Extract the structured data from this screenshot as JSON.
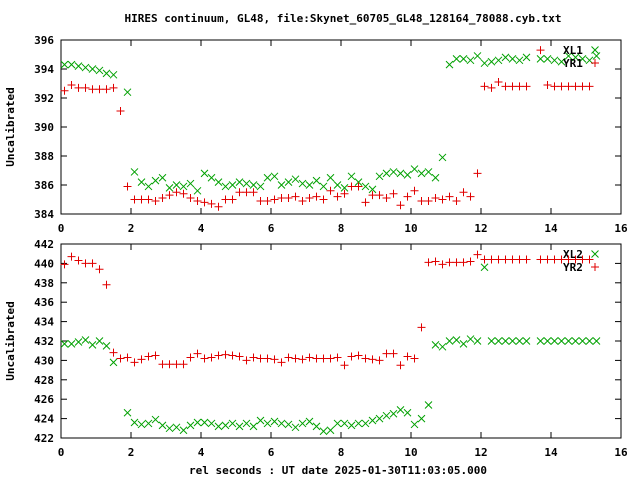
{
  "chart_data": [
    {
      "type": "scatter",
      "title": "HIRES continuum, GL48, file:Skynet_60705_GL48_128164_78088.cyb.txt",
      "xlabel": "",
      "ylabel": "Uncalibrated",
      "xlim": [
        0,
        16
      ],
      "ylim": [
        384,
        396
      ],
      "xticks": [
        0,
        2,
        4,
        6,
        8,
        10,
        12,
        14,
        16
      ],
      "yticks": [
        384,
        386,
        388,
        390,
        392,
        394,
        396
      ],
      "grid": false,
      "legend_position": "top-right",
      "series": [
        {
          "name": "XL1",
          "marker": "x",
          "color": "#00a000",
          "x": [
            0.1,
            0.3,
            0.5,
            0.7,
            0.9,
            1.1,
            1.3,
            1.5,
            1.9,
            2.1,
            2.3,
            2.5,
            2.7,
            2.9,
            3.1,
            3.3,
            3.5,
            3.7,
            3.9,
            4.1,
            4.3,
            4.5,
            4.7,
            4.9,
            5.1,
            5.3,
            5.5,
            5.7,
            5.9,
            6.1,
            6.3,
            6.5,
            6.7,
            6.9,
            7.1,
            7.3,
            7.5,
            7.7,
            7.9,
            8.1,
            8.3,
            8.5,
            8.7,
            8.9,
            9.1,
            9.3,
            9.5,
            9.7,
            9.9,
            10.1,
            10.3,
            10.5,
            10.7,
            10.9,
            11.1,
            11.3,
            11.5,
            11.7,
            11.9,
            12.1,
            12.3,
            12.5,
            12.7,
            12.9,
            13.1,
            13.3,
            13.7,
            13.9,
            14.1,
            14.3,
            14.5,
            14.7,
            14.9,
            15.1,
            15.3
          ],
          "y": [
            394.3,
            394.3,
            394.2,
            394.1,
            394.0,
            393.9,
            393.7,
            393.6,
            392.4,
            386.9,
            386.2,
            385.9,
            386.3,
            386.5,
            385.8,
            386.0,
            385.9,
            386.1,
            385.6,
            386.8,
            386.5,
            386.2,
            385.9,
            386.0,
            386.2,
            386.1,
            386.0,
            385.9,
            386.5,
            386.6,
            386.0,
            386.2,
            386.4,
            386.1,
            386.0,
            386.3,
            385.9,
            386.5,
            386.0,
            385.8,
            386.6,
            386.2,
            385.9,
            385.7,
            386.6,
            386.8,
            386.9,
            386.8,
            386.7,
            387.1,
            386.8,
            386.9,
            386.5,
            387.9,
            394.3,
            394.7,
            394.7,
            394.6,
            394.9,
            394.4,
            394.5,
            394.6,
            394.8,
            394.7,
            394.6,
            394.8,
            394.7,
            394.7,
            394.6,
            394.5,
            394.9,
            394.8,
            394.7,
            394.6,
            394.9
          ]
        },
        {
          "name": "YR1",
          "marker": "+",
          "color": "#e00000",
          "x": [
            0.1,
            0.3,
            0.5,
            0.7,
            0.9,
            1.1,
            1.3,
            1.5,
            1.7,
            1.9,
            2.1,
            2.3,
            2.5,
            2.7,
            2.9,
            3.1,
            3.3,
            3.5,
            3.7,
            3.9,
            4.1,
            4.3,
            4.5,
            4.7,
            4.9,
            5.1,
            5.3,
            5.5,
            5.7,
            5.9,
            6.1,
            6.3,
            6.5,
            6.7,
            6.9,
            7.1,
            7.3,
            7.5,
            7.7,
            7.9,
            8.1,
            8.3,
            8.5,
            8.7,
            8.9,
            9.1,
            9.3,
            9.5,
            9.7,
            9.9,
            10.1,
            10.3,
            10.5,
            10.7,
            10.9,
            11.1,
            11.3,
            11.5,
            11.7,
            11.9,
            12.1,
            12.3,
            12.5,
            12.7,
            12.9,
            13.1,
            13.3,
            13.7,
            13.9,
            14.1,
            14.3,
            14.5,
            14.7,
            14.9,
            15.1
          ],
          "y": [
            392.5,
            392.9,
            392.7,
            392.7,
            392.6,
            392.6,
            392.6,
            392.7,
            391.1,
            385.9,
            385.0,
            385.0,
            385.0,
            384.9,
            385.1,
            385.3,
            385.5,
            385.4,
            385.1,
            384.9,
            384.8,
            384.7,
            384.5,
            385.0,
            385.0,
            385.5,
            385.5,
            385.5,
            384.9,
            384.9,
            385.0,
            385.1,
            385.1,
            385.2,
            384.9,
            385.1,
            385.2,
            385.0,
            385.6,
            385.2,
            385.4,
            385.9,
            385.9,
            384.8,
            385.3,
            385.3,
            385.1,
            385.4,
            384.6,
            385.2,
            385.6,
            384.9,
            384.9,
            385.1,
            385.0,
            385.2,
            384.9,
            385.5,
            385.2,
            386.8,
            392.8,
            392.7,
            393.1,
            392.8,
            392.8,
            392.8,
            392.8,
            395.3,
            392.9,
            392.8,
            392.8,
            392.8,
            392.8,
            392.8,
            392.8
          ]
        }
      ]
    },
    {
      "type": "scatter",
      "title": "",
      "xlabel": "rel seconds : UT date 2025-01-30T11:03:05.000",
      "ylabel": "Uncalibrated",
      "xlim": [
        0,
        16
      ],
      "ylim": [
        422,
        442
      ],
      "xticks": [
        0,
        2,
        4,
        6,
        8,
        10,
        12,
        14,
        16
      ],
      "yticks": [
        422,
        424,
        426,
        428,
        430,
        432,
        434,
        436,
        438,
        440,
        442
      ],
      "grid": false,
      "legend_position": "top-right",
      "series": [
        {
          "name": "XL2",
          "marker": "x",
          "color": "#00a000",
          "x": [
            0.1,
            0.3,
            0.5,
            0.7,
            0.9,
            1.1,
            1.3,
            1.5,
            1.9,
            2.1,
            2.3,
            2.5,
            2.7,
            2.9,
            3.1,
            3.3,
            3.5,
            3.7,
            3.9,
            4.1,
            4.3,
            4.5,
            4.7,
            4.9,
            5.1,
            5.3,
            5.5,
            5.7,
            5.9,
            6.1,
            6.3,
            6.5,
            6.7,
            6.9,
            7.1,
            7.3,
            7.5,
            7.7,
            7.9,
            8.1,
            8.3,
            8.5,
            8.7,
            8.9,
            9.1,
            9.3,
            9.5,
            9.7,
            9.9,
            10.1,
            10.3,
            10.5,
            10.7,
            10.9,
            11.1,
            11.3,
            11.5,
            11.7,
            11.9,
            12.1,
            12.3,
            12.5,
            12.7,
            12.9,
            13.1,
            13.3,
            13.7,
            13.9,
            14.1,
            14.3,
            14.5,
            14.7,
            14.9,
            15.1,
            15.3
          ],
          "y": [
            431.7,
            431.7,
            431.9,
            432.1,
            431.6,
            432.0,
            431.5,
            429.8,
            424.6,
            423.6,
            423.4,
            423.5,
            423.9,
            423.3,
            423.0,
            423.1,
            422.8,
            423.3,
            423.6,
            423.6,
            423.5,
            423.2,
            423.3,
            423.5,
            423.2,
            423.5,
            423.2,
            423.8,
            423.5,
            423.7,
            423.5,
            423.4,
            423.1,
            423.5,
            423.7,
            423.2,
            422.7,
            422.8,
            423.5,
            423.5,
            423.3,
            423.5,
            423.5,
            423.8,
            424.0,
            424.3,
            424.5,
            424.9,
            424.6,
            423.4,
            424.0,
            425.4,
            431.6,
            431.4,
            432.0,
            432.1,
            431.7,
            432.2,
            432.0,
            439.6,
            432.0,
            432.0,
            432.0,
            432.0,
            432.0,
            432.0,
            432.0,
            432.0,
            432.0,
            432.0,
            432.0,
            432.0,
            432.0,
            432.0,
            432.0
          ]
        },
        {
          "name": "YR2",
          "marker": "+",
          "color": "#e00000",
          "x": [
            0.1,
            0.3,
            0.5,
            0.7,
            0.9,
            1.1,
            1.3,
            1.5,
            1.7,
            1.9,
            2.1,
            2.3,
            2.5,
            2.7,
            2.9,
            3.1,
            3.3,
            3.5,
            3.7,
            3.9,
            4.1,
            4.3,
            4.5,
            4.7,
            4.9,
            5.1,
            5.3,
            5.5,
            5.7,
            5.9,
            6.1,
            6.3,
            6.5,
            6.7,
            6.9,
            7.1,
            7.3,
            7.5,
            7.7,
            7.9,
            8.1,
            8.3,
            8.5,
            8.7,
            8.9,
            9.1,
            9.3,
            9.5,
            9.7,
            9.9,
            10.1,
            10.3,
            10.5,
            10.7,
            10.9,
            11.1,
            11.3,
            11.5,
            11.7,
            11.9,
            12.1,
            12.3,
            12.5,
            12.7,
            12.9,
            13.1,
            13.3,
            13.7,
            13.9,
            14.1,
            14.3,
            14.5,
            14.7,
            14.9,
            15.1
          ],
          "y": [
            439.9,
            440.7,
            440.3,
            440.0,
            440.0,
            439.4,
            437.8,
            430.8,
            430.2,
            430.3,
            429.8,
            430.1,
            430.4,
            430.5,
            429.6,
            429.6,
            429.6,
            429.6,
            430.3,
            430.7,
            430.2,
            430.3,
            430.5,
            430.6,
            430.5,
            430.4,
            430.0,
            430.3,
            430.2,
            430.2,
            430.1,
            429.8,
            430.3,
            430.2,
            430.1,
            430.3,
            430.2,
            430.2,
            430.2,
            430.3,
            429.5,
            430.4,
            430.5,
            430.2,
            430.1,
            430.0,
            430.7,
            430.7,
            429.5,
            430.4,
            430.2,
            433.4,
            440.1,
            440.2,
            439.9,
            440.1,
            440.1,
            440.1,
            440.2,
            440.9,
            440.4,
            440.4,
            440.4,
            440.4,
            440.4,
            440.4,
            440.4,
            440.4,
            440.4,
            440.4,
            440.4,
            440.4,
            440.4,
            440.4,
            440.4
          ]
        }
      ]
    }
  ]
}
